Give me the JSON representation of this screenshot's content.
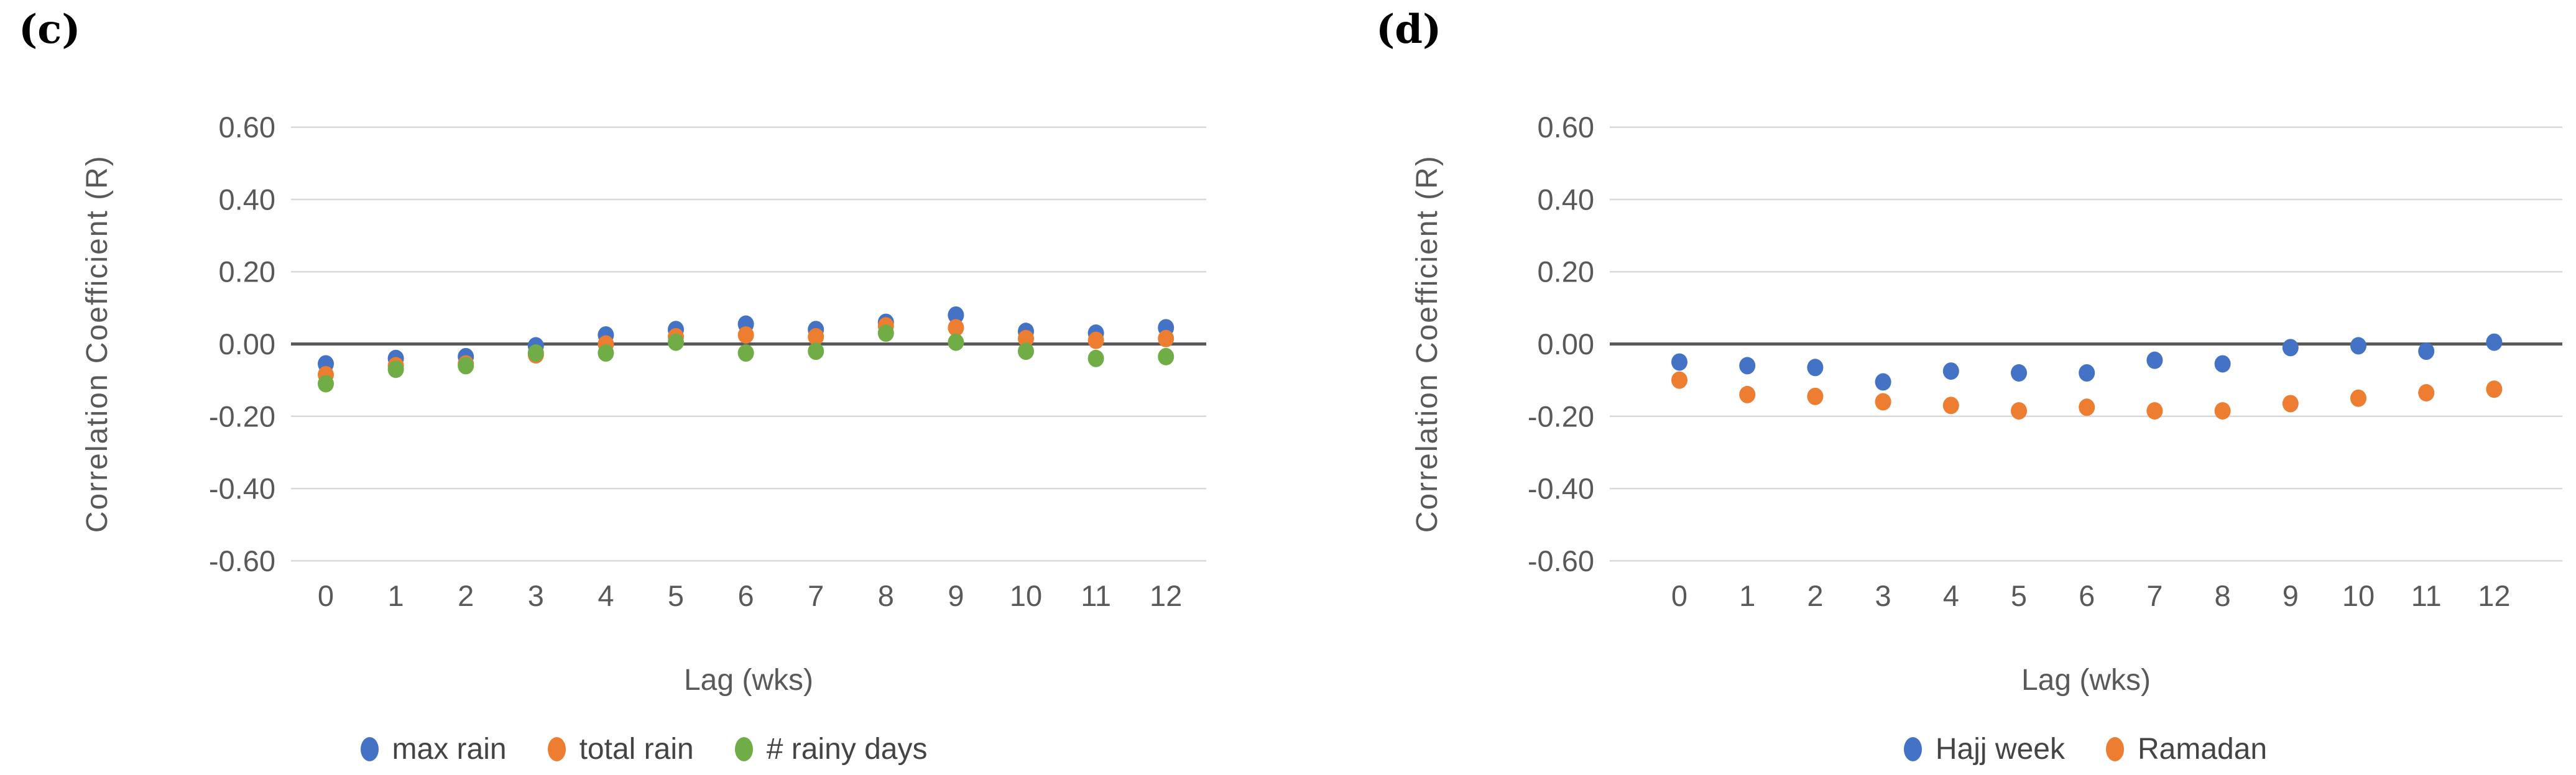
{
  "figure": {
    "background": "#ffffff",
    "grid_color": "#d9d9d9",
    "zero_line_color": "#595959",
    "tick_text_color": "#595959",
    "axis_title_color": "#595959",
    "legend_text_color": "#444444"
  },
  "chart_data": [
    {
      "type": "scatter",
      "panel_label": "(c)",
      "xlabel": "Lag (wks)",
      "ylabel": "Correlation Coefficient (R)",
      "x": [
        0,
        1,
        2,
        3,
        4,
        5,
        6,
        7,
        8,
        9,
        10,
        11,
        12
      ],
      "xtick_labels": [
        "0",
        "1",
        "2",
        "3",
        "4",
        "5",
        "6",
        "7",
        "8",
        "9",
        "10",
        "11",
        "12"
      ],
      "ylim": [
        -0.6,
        0.6
      ],
      "ytick_values": [
        0.6,
        0.4,
        0.2,
        0.0,
        -0.2,
        -0.4,
        -0.6
      ],
      "ytick_labels": [
        "0.60",
        "0.40",
        "0.20",
        "0.00",
        "-0.20",
        "-0.40",
        "-0.60"
      ],
      "grid": true,
      "zero_line": true,
      "legend_position": "bottom",
      "series": [
        {
          "name": "max rain",
          "color": "#4472C4",
          "values": [
            -0.055,
            -0.04,
            -0.035,
            -0.005,
            0.025,
            0.04,
            0.055,
            0.04,
            0.06,
            0.08,
            0.035,
            0.03,
            0.045
          ]
        },
        {
          "name": "total rain",
          "color": "#ED7D31",
          "values": [
            -0.085,
            -0.06,
            -0.055,
            -0.03,
            0.0,
            0.02,
            0.025,
            0.02,
            0.05,
            0.045,
            0.015,
            0.01,
            0.015
          ]
        },
        {
          "name": "# rainy days",
          "color": "#70AD47",
          "values": [
            -0.11,
            -0.07,
            -0.06,
            -0.025,
            -0.025,
            0.005,
            -0.025,
            -0.02,
            0.03,
            0.005,
            -0.02,
            -0.04,
            -0.035
          ]
        }
      ]
    },
    {
      "type": "scatter",
      "panel_label": "(d)",
      "xlabel": "Lag (wks)",
      "ylabel": "Correlation Coefficient (R)",
      "x": [
        0,
        1,
        2,
        3,
        4,
        5,
        6,
        7,
        8,
        9,
        10,
        11,
        12
      ],
      "xtick_labels": [
        "0",
        "1",
        "2",
        "3",
        "4",
        "5",
        "6",
        "7",
        "8",
        "9",
        "10",
        "11",
        "12"
      ],
      "ylim": [
        -0.6,
        0.6
      ],
      "ytick_values": [
        0.6,
        0.4,
        0.2,
        0.0,
        -0.2,
        -0.4,
        -0.6
      ],
      "ytick_labels": [
        "0.60",
        "0.40",
        "0.20",
        "0.00",
        "-0.20",
        "-0.40",
        "-0.60"
      ],
      "grid": true,
      "zero_line": true,
      "legend_position": "bottom",
      "series": [
        {
          "name": "Hajj week",
          "color": "#4472C4",
          "values": [
            -0.05,
            -0.06,
            -0.065,
            -0.105,
            -0.075,
            -0.08,
            -0.08,
            -0.045,
            -0.055,
            -0.01,
            -0.005,
            -0.02,
            0.005
          ]
        },
        {
          "name": "Ramadan",
          "color": "#ED7D31",
          "values": [
            -0.1,
            -0.14,
            -0.145,
            -0.16,
            -0.17,
            -0.185,
            -0.175,
            -0.185,
            -0.185,
            -0.165,
            -0.15,
            -0.135,
            -0.125
          ]
        }
      ]
    }
  ]
}
